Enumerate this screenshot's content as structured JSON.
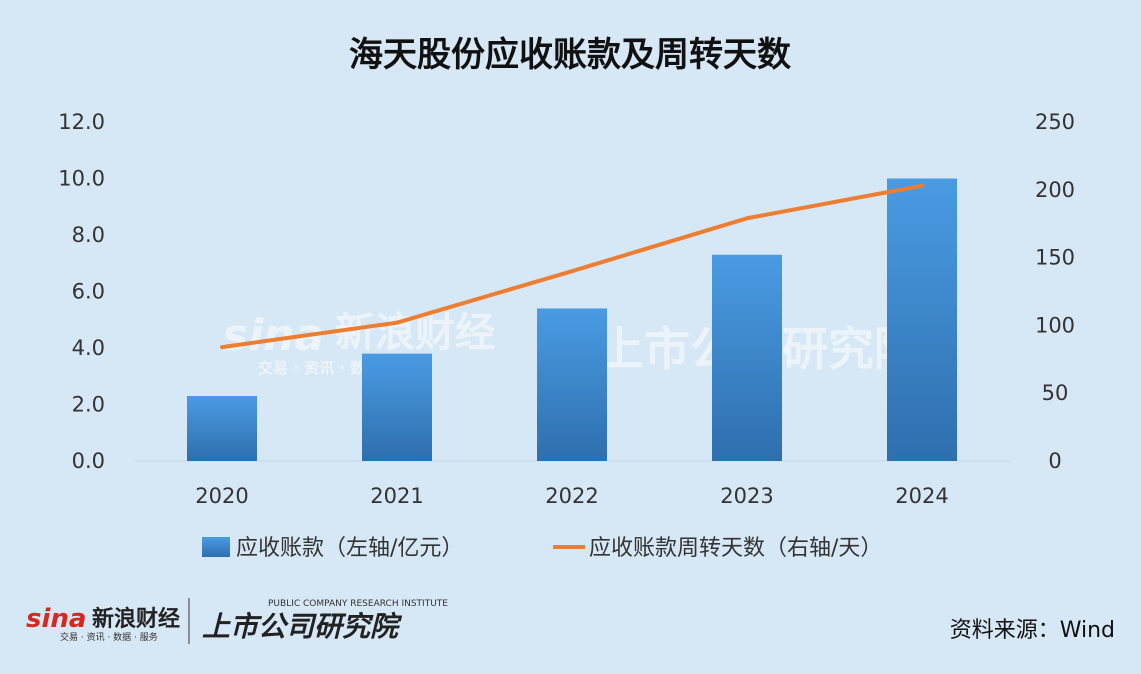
{
  "chart_data": {
    "type": "bar",
    "title": "海天股份应收账款及周转天数",
    "categories": [
      "2020",
      "2021",
      "2022",
      "2023",
      "2024"
    ],
    "series": [
      {
        "name": "应收账款（左轴/亿元）",
        "type": "bar",
        "axis": "left",
        "color": "#3f8fd6",
        "values": [
          2.3,
          3.8,
          5.4,
          7.3,
          10.0
        ]
      },
      {
        "name": "应收账款周转天数（右轴/天）",
        "type": "line",
        "axis": "right",
        "color": "#ed7d31",
        "values": [
          84,
          102,
          140,
          179,
          203
        ]
      }
    ],
    "y_left": {
      "min": 0,
      "max": 12,
      "step": 2,
      "ticks": [
        "0.0",
        "2.0",
        "4.0",
        "6.0",
        "8.0",
        "10.0",
        "12.0"
      ]
    },
    "y_right": {
      "min": 0,
      "max": 250,
      "step": 50,
      "ticks": [
        "0",
        "50",
        "100",
        "150",
        "200",
        "250"
      ]
    },
    "grid": false,
    "legend_position": "bottom"
  },
  "source": "资料来源：Wind",
  "logos": {
    "sina_mark": "sina",
    "sina_name": "新浪财经",
    "sina_sub": "交易 · 资讯 · 数据 · 服务",
    "institute_name": "上市公司研究院",
    "institute_sub": "PUBLIC COMPANY RESEARCH INSTITUTE"
  }
}
